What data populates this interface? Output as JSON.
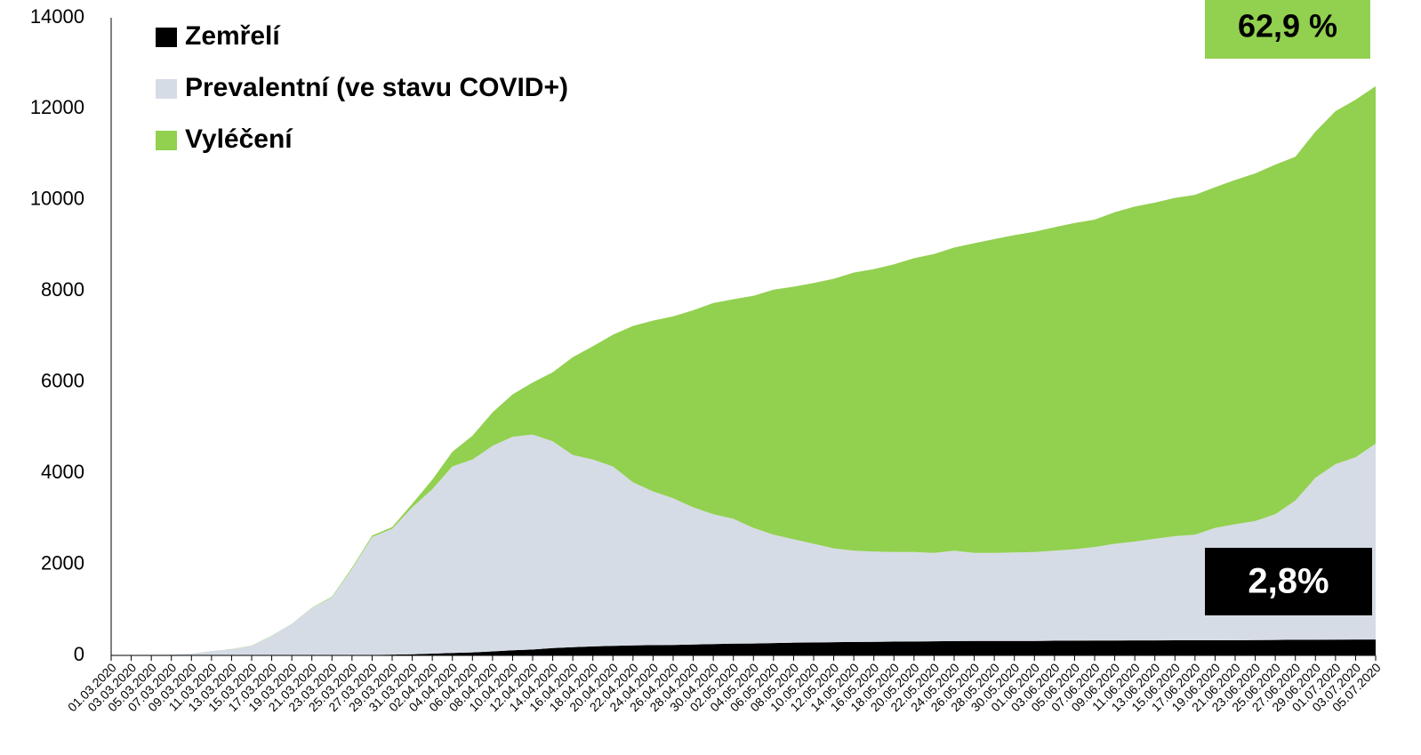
{
  "chart_data": {
    "type": "stacked_area",
    "categories": [
      "01.03.2020",
      "03.03.2020",
      "05.03.2020",
      "07.03.2020",
      "09.03.2020",
      "11.03.2020",
      "13.03.2020",
      "15.03.2020",
      "17.03.2020",
      "19.03.2020",
      "21.03.2020",
      "23.03.2020",
      "25.03.2020",
      "27.03.2020",
      "29.03.2020",
      "31.03.2020",
      "02.04.2020",
      "04.04.2020",
      "06.04.2020",
      "08.04.2020",
      "10.04.2020",
      "12.04.2020",
      "14.04.2020",
      "16.04.2020",
      "18.04.2020",
      "20.04.2020",
      "22.04.2020",
      "24.04.2020",
      "26.04.2020",
      "28.04.2020",
      "30.04.2020",
      "02.05.2020",
      "04.05.2020",
      "06.05.2020",
      "08.05.2020",
      "10.05.2020",
      "12.05.2020",
      "14.05.2020",
      "16.05.2020",
      "18.05.2020",
      "20.05.2020",
      "22.05.2020",
      "24.05.2020",
      "26.05.2020",
      "28.05.2020",
      "30.05.2020",
      "01.06.2020",
      "03.06.2020",
      "05.06.2020",
      "07.06.2020",
      "09.06.2020",
      "11.06.2020",
      "13.06.2020",
      "15.06.2020",
      "17.06.2020",
      "19.06.2020",
      "21.06.2020",
      "23.06.2020",
      "25.06.2020",
      "27.06.2020",
      "29.06.2020",
      "01.07.2020",
      "03.07.2020",
      "05.07.2020"
    ],
    "series": [
      {
        "name": "Zemřelí",
        "color": "#000000",
        "values": [
          0,
          0,
          0,
          0,
          0,
          0,
          0,
          0,
          0,
          0,
          0,
          1,
          2,
          9,
          16,
          25,
          39,
          53,
          67,
          88,
          113,
          129,
          161,
          181,
          197,
          210,
          220,
          227,
          230,
          240,
          250,
          258,
          262,
          270,
          280,
          283,
          290,
          295,
          298,
          302,
          306,
          310,
          315,
          317,
          317,
          318,
          318,
          322,
          325,
          326,
          328,
          329,
          330,
          331,
          331,
          332,
          334,
          336,
          339,
          344,
          345,
          347,
          348,
          350
        ]
      },
      {
        "name": "Prevalentní (ve stavu COVID+)",
        "color": "#d6dce5",
        "values": [
          3,
          5,
          12,
          19,
          40,
          94,
          140,
          210,
          430,
          690,
          1040,
          1274,
          1898,
          2591,
          2764,
          3225,
          3611,
          4097,
          4233,
          4512,
          4687,
          4721,
          4539,
          4219,
          4103,
          3940,
          3580,
          3373,
          3220,
          3010,
          2850,
          2742,
          2538,
          2380,
          2270,
          2167,
          2060,
          2005,
          1982,
          1968,
          1964,
          1940,
          1985,
          1933,
          1933,
          1942,
          1952,
          1978,
          2005,
          2054,
          2122,
          2171,
          2230,
          2289,
          2319,
          2468,
          2546,
          2614,
          2761,
          3056,
          3555,
          3853,
          4002,
          4300
        ]
      },
      {
        "name": "Vyléčení",
        "color": "#92d050",
        "values": [
          0,
          0,
          0,
          0,
          0,
          0,
          1,
          4,
          4,
          4,
          7,
          14,
          25,
          31,
          37,
          80,
          208,
          322,
          522,
          735,
          932,
          1141,
          1516,
          2149,
          2487,
          2891,
          3435,
          3752,
          3995,
          4329,
          4637,
          4819,
          5096,
          5381,
          5545,
          5726,
          5919,
          6106,
          6202,
          6316,
          6451,
          6563,
          6655,
          6800,
          6890,
          6969,
          7032,
          7102,
          7164,
          7187,
          7281,
          7355,
          7381,
          7425,
          7461,
          7480,
          7559,
          7632,
          7677,
          7550,
          7600,
          7750,
          7850,
          7850
        ]
      }
    ],
    "ylim": [
      0,
      14000
    ],
    "yticks": [
      0,
      2000,
      4000,
      6000,
      8000,
      10000,
      12000,
      14000
    ],
    "annotations": [
      "62,9 %",
      "2,8%"
    ]
  }
}
